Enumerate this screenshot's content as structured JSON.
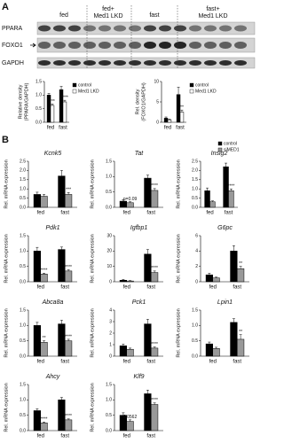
{
  "panel_labels": [
    "A",
    "B"
  ],
  "blot": {
    "rows": [
      "PPARA",
      "FOXO1",
      "GAPDH"
    ],
    "headers": [
      [
        "fed"
      ],
      [
        "fed+",
        "Med1 LKD"
      ],
      [
        "fast"
      ],
      [
        "fast+",
        "Med1 LKD"
      ]
    ]
  },
  "chart_data": [
    {
      "type": "bar",
      "ylabel": [
        "Relative density",
        "(PPARA/GAPDH)"
      ],
      "categories": [
        "fed",
        "fast"
      ],
      "series": [
        {
          "name": "control",
          "color": "#000000",
          "values": [
            1.0,
            1.2
          ],
          "errors": [
            0.06,
            0.12
          ],
          "annotations": [
            null,
            null
          ]
        },
        {
          "name": "Med1 LKD",
          "color": "#ffffff",
          "values": [
            0.62,
            0.75
          ],
          "errors": [
            0.05,
            0.06
          ],
          "annotations": [
            "***",
            "****"
          ]
        }
      ],
      "ylim": [
        0,
        1.5
      ],
      "yticks": [
        {
          "value": 0,
          "label": "0.0"
        },
        {
          "value": 0.5,
          "label": "0.5"
        },
        {
          "value": 1,
          "label": "1.0"
        },
        {
          "value": 1.5,
          "label": "1.5"
        }
      ],
      "legend": "right"
    },
    {
      "type": "bar",
      "ylabel": [
        "Rel. density",
        "(FOXO1/GAPDH)"
      ],
      "categories": [
        "fed",
        "fast"
      ],
      "series": [
        {
          "name": "control",
          "color": "#000000",
          "values": [
            1.0,
            6.8
          ],
          "errors": [
            0.3,
            1.8
          ],
          "annotations": [
            null,
            null
          ]
        },
        {
          "name": "Med1 LKD",
          "color": "#ffffff",
          "values": [
            0.6,
            2.5
          ],
          "errors": [
            0.2,
            0.5
          ],
          "annotations": [
            null,
            "**"
          ]
        }
      ],
      "ylim": [
        0,
        10
      ],
      "yticks": [
        0,
        5,
        10
      ],
      "legend": "right"
    },
    {
      "type": "bar",
      "title": "Kcnk5",
      "ylabel": [
        "Rel. mRNA expression"
      ],
      "categories": [
        "fed",
        "fast"
      ],
      "series": [
        {
          "name": "control",
          "color": "#000000",
          "values": [
            0.7,
            1.7
          ],
          "errors": [
            0.12,
            0.3
          ],
          "annotations": [
            null,
            null
          ]
        },
        {
          "name": "siMED1",
          "color": "#999999",
          "values": [
            0.6,
            0.7
          ],
          "errors": [
            0.1,
            0.1
          ],
          "annotations": [
            null,
            "***"
          ]
        }
      ],
      "ylim": [
        0,
        2.5
      ],
      "yticks": [
        {
          "value": 0,
          "label": "0.0"
        },
        {
          "value": 0.5,
          "label": "0.5"
        },
        {
          "value": 1,
          "label": "1.0"
        },
        {
          "value": 1.5,
          "label": "1.5"
        },
        {
          "value": 2,
          "label": "2.0"
        },
        {
          "value": 2.5,
          "label": "2.5"
        }
      ]
    },
    {
      "type": "bar",
      "title": "Tat",
      "ylabel": [
        "Rel. mRNA expression"
      ],
      "categories": [
        "fed",
        "fast"
      ],
      "series": [
        {
          "name": "control",
          "color": "#000000",
          "values": [
            0.2,
            0.95
          ],
          "errors": [
            0.05,
            0.1
          ],
          "annotations": [
            null,
            null
          ]
        },
        {
          "name": "siMED1",
          "color": "#999999",
          "values": [
            0.15,
            0.55
          ],
          "errors": [
            0.03,
            0.06
          ],
          "annotations": [
            "p=0.09",
            "****"
          ]
        }
      ],
      "ylim": [
        0,
        1.5
      ],
      "yticks": [
        {
          "value": 0,
          "label": "0.0"
        },
        {
          "value": 0.5,
          "label": "0.5"
        },
        {
          "value": 1,
          "label": "1.0"
        },
        {
          "value": 1.5,
          "label": "1.5"
        }
      ]
    },
    {
      "type": "bar",
      "title": "Insig2",
      "ylabel": [
        "Rel. mRNA expression"
      ],
      "categories": [
        "fed",
        "fast"
      ],
      "series": [
        {
          "name": "control",
          "color": "#000000",
          "values": [
            0.9,
            2.2
          ],
          "errors": [
            0.15,
            0.2
          ],
          "annotations": [
            null,
            null
          ]
        },
        {
          "name": "siMED1",
          "color": "#999999",
          "values": [
            0.3,
            0.9
          ],
          "errors": [
            0.05,
            0.1
          ],
          "annotations": [
            null,
            "****"
          ]
        }
      ],
      "ylim": [
        0,
        2.5
      ],
      "yticks": [
        {
          "value": 0,
          "label": "0.0"
        },
        {
          "value": 0.5,
          "label": "0.5"
        },
        {
          "value": 1,
          "label": "1.0"
        },
        {
          "value": 1.5,
          "label": "1.5"
        },
        {
          "value": 2,
          "label": "2.0"
        },
        {
          "value": 2.5,
          "label": "2.5"
        }
      ],
      "legend": "upper right"
    },
    {
      "type": "bar",
      "title": "Pdk1",
      "ylabel": [
        "Rel. mRNA expression"
      ],
      "categories": [
        "fed",
        "fast"
      ],
      "series": [
        {
          "name": "control",
          "color": "#000000",
          "values": [
            1.0,
            1.05
          ],
          "errors": [
            0.12,
            0.08
          ],
          "annotations": [
            null,
            null
          ]
        },
        {
          "name": "siMED1",
          "color": "#999999",
          "values": [
            0.25,
            0.35
          ],
          "errors": [
            0.03,
            0.04
          ],
          "annotations": [
            "****",
            "****"
          ]
        }
      ],
      "ylim": [
        0,
        1.5
      ],
      "yticks": [
        {
          "value": 0,
          "label": "0.0"
        },
        {
          "value": 0.5,
          "label": "0.5"
        },
        {
          "value": 1,
          "label": "1.0"
        },
        {
          "value": 1.5,
          "label": "1.5"
        }
      ]
    },
    {
      "type": "bar",
      "title": "Igfbp1",
      "ylabel": [
        "Rel. mRNA expression"
      ],
      "categories": [
        "fed",
        "fast"
      ],
      "series": [
        {
          "name": "control",
          "color": "#000000",
          "values": [
            1,
            18
          ],
          "errors": [
            0.5,
            3
          ],
          "annotations": [
            null,
            null
          ]
        },
        {
          "name": "siMED1",
          "color": "#999999",
          "values": [
            0.5,
            6
          ],
          "errors": [
            0.3,
            1
          ],
          "annotations": [
            null,
            "****"
          ]
        }
      ],
      "ylim": [
        0,
        30
      ],
      "yticks": [
        0,
        10,
        20,
        30
      ]
    },
    {
      "type": "bar",
      "title": "G6pc",
      "ylabel": [
        "Rel. mRNA expression"
      ],
      "categories": [
        "fed",
        "fast"
      ],
      "series": [
        {
          "name": "control",
          "color": "#000000",
          "values": [
            0.9,
            4.0
          ],
          "errors": [
            0.2,
            0.7
          ],
          "annotations": [
            null,
            null
          ]
        },
        {
          "name": "siMED1",
          "color": "#999999",
          "values": [
            0.5,
            1.7
          ],
          "errors": [
            0.1,
            0.3
          ],
          "annotations": [
            null,
            "**"
          ]
        }
      ],
      "ylim": [
        0,
        6
      ],
      "yticks": [
        0,
        2,
        4,
        6
      ]
    },
    {
      "type": "bar",
      "title": "Abca8a",
      "ylabel": [
        "Rel. mRNA expression"
      ],
      "categories": [
        "fed",
        "fast"
      ],
      "series": [
        {
          "name": "control",
          "color": "#000000",
          "values": [
            1.0,
            1.05
          ],
          "errors": [
            0.1,
            0.12
          ],
          "annotations": [
            null,
            null
          ]
        },
        {
          "name": "siMED1",
          "color": "#999999",
          "values": [
            0.45,
            0.5
          ],
          "errors": [
            0.05,
            0.05
          ],
          "annotations": [
            "**",
            "****"
          ]
        }
      ],
      "ylim": [
        0,
        1.5
      ],
      "yticks": [
        {
          "value": 0,
          "label": "0.0"
        },
        {
          "value": 0.5,
          "label": "0.5"
        },
        {
          "value": 1,
          "label": "1.0"
        },
        {
          "value": 1.5,
          "label": "1.5"
        }
      ]
    },
    {
      "type": "bar",
      "title": "Pck1",
      "ylabel": [
        "Rel. mRNA expression"
      ],
      "categories": [
        "fed",
        "fast"
      ],
      "series": [
        {
          "name": "control",
          "color": "#000000",
          "values": [
            0.9,
            2.8
          ],
          "errors": [
            0.15,
            0.4
          ],
          "annotations": [
            null,
            null
          ]
        },
        {
          "name": "siMED1",
          "color": "#999999",
          "values": [
            0.6,
            0.7
          ],
          "errors": [
            0.1,
            0.1
          ],
          "annotations": [
            null,
            "****"
          ]
        }
      ],
      "ylim": [
        0,
        4
      ],
      "yticks": [
        0,
        1,
        2,
        3,
        4
      ]
    },
    {
      "type": "bar",
      "title": "Lpin1",
      "ylabel": [
        "Rel. mRNA expression"
      ],
      "categories": [
        "fed",
        "fast"
      ],
      "series": [
        {
          "name": "control",
          "color": "#000000",
          "values": [
            0.4,
            1.1
          ],
          "errors": [
            0.06,
            0.12
          ],
          "annotations": [
            null,
            null
          ]
        },
        {
          "name": "siMED1",
          "color": "#999999",
          "values": [
            0.25,
            0.55
          ],
          "errors": [
            0.04,
            0.15
          ],
          "annotations": [
            null,
            "**"
          ]
        }
      ],
      "ylim": [
        0,
        1.5
      ],
      "yticks": [
        {
          "value": 0,
          "label": "0.0"
        },
        {
          "value": 0.5,
          "label": "0.5"
        },
        {
          "value": 1,
          "label": "1.0"
        },
        {
          "value": 1.5,
          "label": "1.5"
        }
      ]
    },
    {
      "type": "bar",
      "title": "Ahcy",
      "ylabel": [
        "Rel. mRNA expression"
      ],
      "categories": [
        "fed",
        "fast"
      ],
      "series": [
        {
          "name": "control",
          "color": "#000000",
          "values": [
            0.65,
            1.0
          ],
          "errors": [
            0.06,
            0.08
          ],
          "annotations": [
            null,
            null
          ]
        },
        {
          "name": "siMED1",
          "color": "#999999",
          "values": [
            0.25,
            0.35
          ],
          "errors": [
            0.03,
            0.03
          ],
          "annotations": [
            "****",
            "****"
          ]
        }
      ],
      "ylim": [
        0,
        1.5
      ],
      "yticks": [
        {
          "value": 0,
          "label": "0.0"
        },
        {
          "value": 0.5,
          "label": "0.5"
        },
        {
          "value": 1,
          "label": "1.0"
        },
        {
          "value": 1.5,
          "label": "1.5"
        }
      ]
    },
    {
      "type": "bar",
      "title": "Klf9",
      "ylabel": [
        "Rel. mRNA expression"
      ],
      "categories": [
        "fed",
        "fast"
      ],
      "series": [
        {
          "name": "control",
          "color": "#000000",
          "values": [
            0.5,
            1.2
          ],
          "errors": [
            0.08,
            0.12
          ],
          "annotations": [
            null,
            null
          ]
        },
        {
          "name": "siMED1",
          "color": "#999999",
          "values": [
            0.3,
            0.85
          ],
          "errors": [
            0.05,
            0.05
          ],
          "annotations": [
            "0.0562",
            "****"
          ]
        }
      ],
      "ylim": [
        0,
        1.5
      ],
      "yticks": [
        {
          "value": 0,
          "label": "0.0"
        },
        {
          "value": 0.5,
          "label": "0.5"
        },
        {
          "value": 1,
          "label": "1.0"
        },
        {
          "value": 1.5,
          "label": "1.5"
        }
      ]
    }
  ]
}
